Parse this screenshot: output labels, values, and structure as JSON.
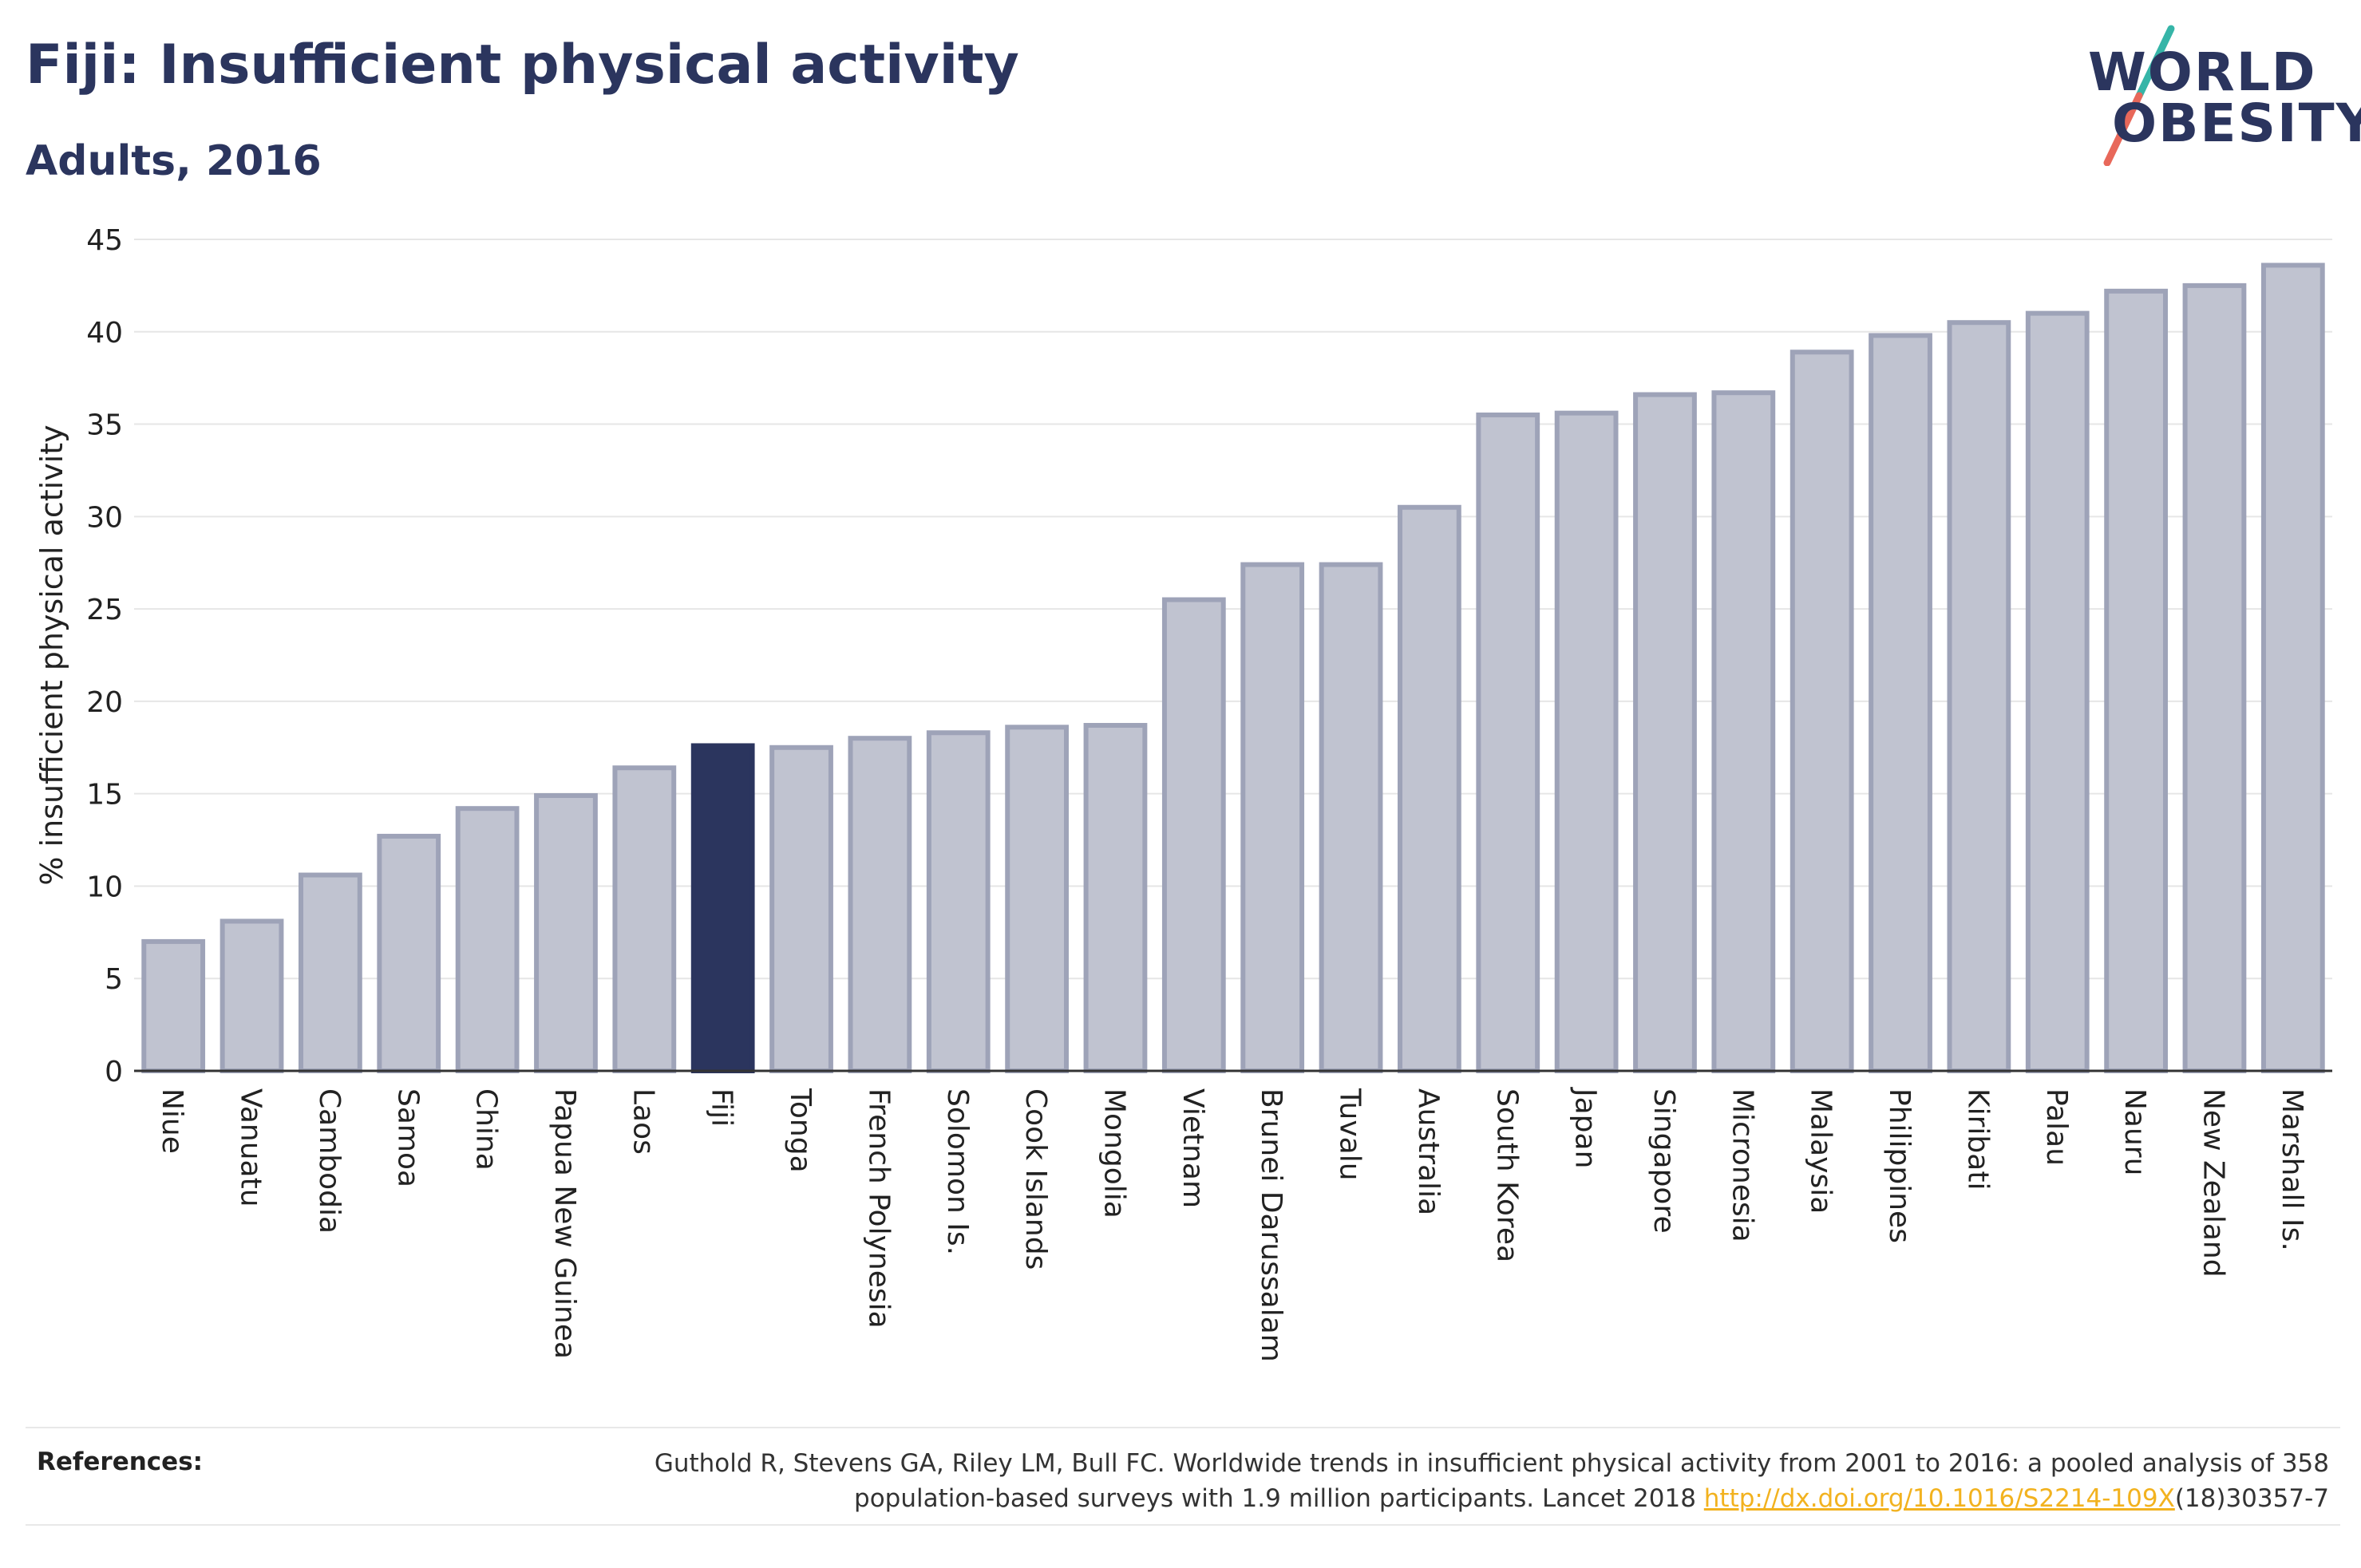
{
  "header": {
    "title": "Fiji: Insufficient physical activity",
    "subtitle": "Adults, 2016"
  },
  "logo": {
    "line1": "WORLD",
    "line2": "OBESITY",
    "slash_colors": [
      "#36b5a8",
      "#e8685a"
    ]
  },
  "colors": {
    "highlight_bar": "#2b355e",
    "bar_fill": "#c0c3d0",
    "bar_stroke": "#9ea3b8",
    "axis_text": "#222222",
    "grid": "#e6e6e6",
    "link": "#f2b21f"
  },
  "chart_data": {
    "type": "bar",
    "ylabel": "% insufficient physical activity",
    "xlabel": "",
    "ylim": [
      0,
      45
    ],
    "yticks": [
      0,
      5,
      10,
      15,
      20,
      25,
      30,
      35,
      40,
      45
    ],
    "grid": "horizontal",
    "highlight": "Fiji",
    "categories": [
      "Niue",
      "Vanuatu",
      "Cambodia",
      "Samoa",
      "China",
      "Papua New Guinea",
      "Laos",
      "Fiji",
      "Tonga",
      "French Polynesia",
      "Solomon Is.",
      "Cook Islands",
      "Mongolia",
      "Vietnam",
      "Brunei Darussalam",
      "Tuvalu",
      "Australia",
      "South Korea",
      "Japan",
      "Singapore",
      "Micronesia",
      "Malaysia",
      "Philippines",
      "Kiribati",
      "Palau",
      "Nauru",
      "New Zealand",
      "Marshall Is."
    ],
    "values": [
      7.0,
      8.1,
      10.6,
      12.7,
      14.2,
      14.9,
      16.4,
      17.6,
      17.5,
      18.0,
      18.3,
      18.6,
      18.7,
      25.5,
      27.4,
      27.4,
      30.5,
      35.5,
      35.6,
      36.6,
      36.7,
      38.9,
      39.8,
      40.5,
      41.0,
      42.2,
      42.5,
      43.6
    ]
  },
  "references": {
    "label": "References:",
    "text_before_link": "Guthold R, Stevens GA, Riley LM, Bull FC. Worldwide trends in insufficient physical activity from 2001 to 2016: a pooled analysis of 358 population-based surveys with 1.9 million participants. Lancet 2018 ",
    "link_text": "http://dx.doi.org/10.1016/S2214-109X",
    "text_after_link": "(18)30357-7"
  }
}
